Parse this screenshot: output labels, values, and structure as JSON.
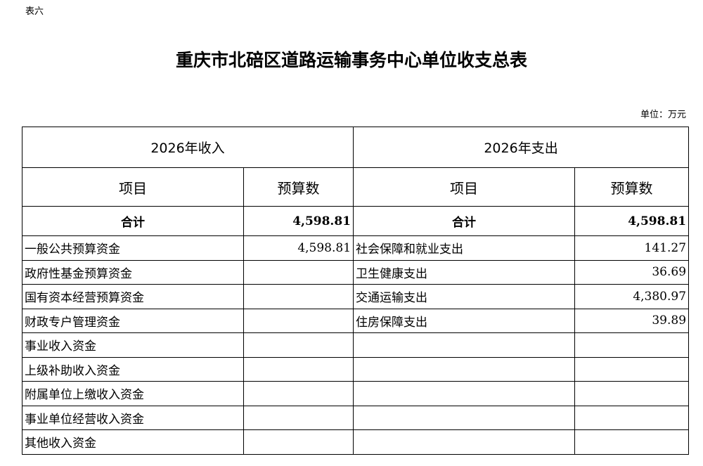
{
  "doc": {
    "tag": "表六",
    "title": "重庆市北碚区道路运输事务中心单位收支总表",
    "unit": "单位：万元"
  },
  "table": {
    "income_header": "2026年收入",
    "expense_header": "2026年支出",
    "col_item": "项目",
    "col_budget": "预算数",
    "total": {
      "income_label": "合计",
      "income_value": "4,598.81",
      "expense_label": "合计",
      "expense_value": "4,598.81"
    },
    "rows": [
      {
        "income_item": "一般公共预算资金",
        "income_value": "4,598.81",
        "expense_item": "社会保障和就业支出",
        "expense_value": "141.27"
      },
      {
        "income_item": "政府性基金预算资金",
        "income_value": "",
        "expense_item": "卫生健康支出",
        "expense_value": "36.69"
      },
      {
        "income_item": "国有资本经营预算资金",
        "income_value": "",
        "expense_item": "交通运输支出",
        "expense_value": "4,380.97"
      },
      {
        "income_item": "财政专户管理资金",
        "income_value": "",
        "expense_item": "住房保障支出",
        "expense_value": "39.89"
      },
      {
        "income_item": "事业收入资金",
        "income_value": "",
        "expense_item": "",
        "expense_value": ""
      },
      {
        "income_item": "上级补助收入资金",
        "income_value": "",
        "expense_item": "",
        "expense_value": ""
      },
      {
        "income_item": "附属单位上缴收入资金",
        "income_value": "",
        "expense_item": "",
        "expense_value": ""
      },
      {
        "income_item": "事业单位经营收入资金",
        "income_value": "",
        "expense_item": "",
        "expense_value": ""
      },
      {
        "income_item": "其他收入资金",
        "income_value": "",
        "expense_item": "",
        "expense_value": ""
      }
    ]
  }
}
